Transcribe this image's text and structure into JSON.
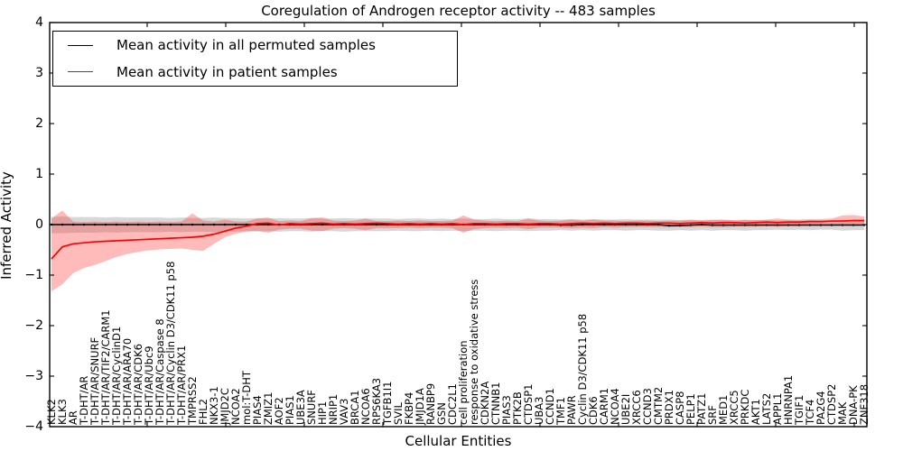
{
  "chart_data": {
    "type": "line",
    "title": "Coregulation of Androgen receptor activity -- 483 samples",
    "xlabel": "Cellular Entities",
    "ylabel": "Inferred Activity",
    "ylim": [
      -4,
      4
    ],
    "yticks": [
      "4",
      "3",
      "2",
      "1",
      "0",
      "−1",
      "−2",
      "−3",
      "−4"
    ],
    "grid": "off",
    "legend_position": "upper left",
    "colors": {
      "permuted_line": "#000000",
      "patient_line": "#ff0000",
      "permuted_band": "rgba(110,110,110,0.28)",
      "patient_band": "rgba(255,45,45,0.33)",
      "axis": "#000000"
    },
    "categories": [
      "KLK2",
      "KLK3",
      "AR",
      "T-DHT/AR",
      "T-DHT/AR/SNURF",
      "T-DHT/AR/TIF2/CARM1",
      "T-DHT/AR/CyclinD1",
      "T-DHT/AR/ARA70",
      "T-DHT/AR/CDK6",
      "T-DHT/AR/Ubc9",
      "T-DHT/AR/Caspase 8",
      "T-DHT/AR/Cyclin D3/CDK11 p58",
      "T-DHT/AR/PRX1",
      "TMPRSS2",
      "FHL2",
      "NKX3-1",
      "JMJD2C",
      "NCOA2",
      "mol:T-DHT",
      "PIAS4",
      "ZMIZ1",
      "AOF2",
      "PIAS1",
      "UBE3A",
      "SNURF",
      "HIP1",
      "NRIP1",
      "VAV3",
      "BRCA1",
      "NCOA6",
      "RPS6KA3",
      "TGFB1I1",
      "SVIL",
      "FKBP4",
      "JMJD1A",
      "RANBP9",
      "GSN",
      "CDC2L1",
      "cell proliferation",
      "response to oxidative stress",
      "CDKN2A",
      "CTNNB1",
      "PIAS3",
      "PTK2B",
      "CTDSP1",
      "UBA3",
      "CCND1",
      "TMF1",
      "PAWR",
      "Cyclin D3/CDK11 p58",
      "CDK6",
      "CARM1",
      "NCOA4",
      "UBE2I",
      "XRCC6",
      "CCND3",
      "CMTM2",
      "PRDX1",
      "CASP8",
      "PELP1",
      "PATZ1",
      "SRF",
      "MED1",
      "XRCC5",
      "PRKDC",
      "AKT1",
      "LATS2",
      "APPL1",
      "HNRNPA1",
      "TGIF1",
      "TCF4",
      "PA2G4",
      "CTDSP2",
      "MAK",
      "DNA-PK",
      "ZNF318"
    ],
    "series": [
      {
        "name": "Mean activity in all permuted samples",
        "color": "#000000",
        "band_fill": "rgba(110,110,110,0.28)",
        "markers": true,
        "values": [
          0,
          0,
          0,
          0,
          0,
          0,
          0,
          0,
          0,
          0,
          0,
          0,
          0,
          0,
          0,
          0,
          0,
          0,
          0,
          0,
          0,
          0,
          0,
          0,
          0,
          0,
          0,
          0,
          0,
          0,
          0,
          0,
          0,
          0,
          0,
          0,
          0,
          0,
          0,
          0,
          0,
          0,
          0,
          0,
          0,
          0,
          0,
          -0.01,
          -0.01,
          0,
          0,
          0,
          0,
          0,
          0,
          0,
          0,
          -0.02,
          -0.02,
          -0.01,
          0,
          -0.01,
          -0.01,
          -0.01,
          -0.01,
          -0.01,
          -0.01,
          -0.01,
          -0.01,
          -0.01,
          -0.01,
          -0.01,
          -0.01,
          -0.01,
          -0.01,
          -0.01
        ],
        "band_upper": [
          0.15,
          0.16,
          0.15,
          0.15,
          0.15,
          0.14,
          0.15,
          0.14,
          0.14,
          0.14,
          0.14,
          0.13,
          0.14,
          0.13,
          0.13,
          0.14,
          0.13,
          0.13,
          0.12,
          0.13,
          0.12,
          0.13,
          0.12,
          0.12,
          0.13,
          0.12,
          0.12,
          0.13,
          0.12,
          0.12,
          0.12,
          0.12,
          0.11,
          0.12,
          0.12,
          0.11,
          0.12,
          0.11,
          0.12,
          0.11,
          0.11,
          0.12,
          0.11,
          0.11,
          0.12,
          0.11,
          0.11,
          0.1,
          0.11,
          0.1,
          0.11,
          0.1,
          0.1,
          0.11,
          0.1,
          0.1,
          0.1,
          0.1,
          0.09,
          0.1,
          0.09,
          0.1,
          0.09,
          0.09,
          0.1,
          0.09,
          0.09,
          0.08,
          0.09,
          0.08,
          0.09,
          0.08,
          0.08,
          0.09,
          0.08,
          0.08
        ],
        "band_lower": [
          -0.17,
          -0.17,
          -0.16,
          -0.16,
          -0.16,
          -0.15,
          -0.16,
          -0.15,
          -0.15,
          -0.15,
          -0.15,
          -0.14,
          -0.15,
          -0.14,
          -0.14,
          -0.15,
          -0.14,
          -0.14,
          -0.13,
          -0.14,
          -0.13,
          -0.14,
          -0.13,
          -0.13,
          -0.14,
          -0.13,
          -0.13,
          -0.14,
          -0.13,
          -0.13,
          -0.13,
          -0.13,
          -0.12,
          -0.13,
          -0.13,
          -0.12,
          -0.13,
          -0.12,
          -0.13,
          -0.12,
          -0.12,
          -0.13,
          -0.12,
          -0.12,
          -0.13,
          -0.12,
          -0.12,
          -0.11,
          -0.12,
          -0.11,
          -0.12,
          -0.11,
          -0.11,
          -0.12,
          -0.11,
          -0.11,
          -0.12,
          -0.12,
          -0.11,
          -0.12,
          -0.11,
          -0.12,
          -0.11,
          -0.11,
          -0.12,
          -0.11,
          -0.11,
          -0.1,
          -0.11,
          -0.1,
          -0.11,
          -0.1,
          -0.1,
          -0.12,
          -0.11,
          -0.11
        ]
      },
      {
        "name": "Mean activity in patient samples",
        "color": "#ff0000",
        "band_fill": "rgba(255,45,45,0.33)",
        "markers": false,
        "values": [
          -0.68,
          -0.44,
          -0.38,
          -0.36,
          -0.34,
          -0.33,
          -0.32,
          -0.31,
          -0.3,
          -0.29,
          -0.28,
          -0.27,
          -0.26,
          -0.25,
          -0.23,
          -0.19,
          -0.13,
          -0.07,
          -0.03,
          0.02,
          0.03,
          -0.01,
          0.02,
          0.01,
          0.02,
          0.03,
          0.01,
          0.02,
          0.01,
          0.02,
          0.03,
          0.02,
          0.01,
          0.02,
          0.01,
          0.02,
          0.01,
          0.02,
          0.0,
          0.02,
          0.02,
          0.01,
          0.02,
          0.02,
          0.01,
          0.02,
          0.02,
          0.01,
          0.02,
          0.03,
          0.02,
          0.03,
          0.02,
          0.03,
          0.03,
          0.02,
          0.03,
          0.03,
          0.02,
          0.03,
          0.04,
          0.03,
          0.04,
          0.04,
          0.03,
          0.04,
          0.05,
          0.04,
          0.05,
          0.05,
          0.06,
          0.06,
          0.07,
          0.07,
          0.08,
          0.08
        ],
        "band_upper": [
          0.12,
          0.28,
          0.06,
          0.05,
          0.06,
          0.05,
          0.06,
          0.05,
          0.06,
          0.05,
          0.06,
          0.05,
          0.06,
          0.22,
          0.08,
          0.06,
          0.1,
          0.06,
          0.06,
          0.12,
          0.14,
          0.07,
          0.08,
          0.07,
          0.13,
          0.14,
          0.08,
          0.07,
          0.08,
          0.12,
          0.07,
          0.07,
          0.08,
          0.07,
          0.08,
          0.07,
          0.07,
          0.08,
          0.18,
          0.1,
          0.08,
          0.07,
          0.08,
          0.07,
          0.12,
          0.08,
          0.07,
          0.08,
          0.1,
          0.08,
          0.1,
          0.08,
          0.08,
          0.07,
          0.08,
          0.08,
          0.07,
          0.08,
          0.08,
          0.09,
          0.08,
          0.09,
          0.1,
          0.08,
          0.09,
          0.09,
          0.1,
          0.12,
          0.1,
          0.1,
          0.11,
          0.11,
          0.12,
          0.18,
          0.19,
          0.16
        ],
        "band_lower": [
          -1.32,
          -1.18,
          -0.96,
          -0.86,
          -0.8,
          -0.72,
          -0.64,
          -0.58,
          -0.54,
          -0.51,
          -0.49,
          -0.48,
          -0.47,
          -0.5,
          -0.52,
          -0.38,
          -0.25,
          -0.18,
          -0.14,
          -0.12,
          -0.16,
          -0.1,
          -0.08,
          -0.08,
          -0.12,
          -0.13,
          -0.08,
          -0.07,
          -0.08,
          -0.11,
          -0.07,
          -0.07,
          -0.07,
          -0.06,
          -0.07,
          -0.06,
          -0.06,
          -0.07,
          -0.16,
          -0.09,
          -0.07,
          -0.06,
          -0.07,
          -0.06,
          -0.09,
          -0.06,
          -0.06,
          -0.06,
          -0.07,
          -0.06,
          -0.07,
          -0.05,
          -0.06,
          -0.05,
          -0.05,
          -0.05,
          -0.05,
          -0.05,
          -0.04,
          -0.05,
          -0.04,
          -0.05,
          -0.05,
          -0.04,
          -0.04,
          -0.04,
          -0.03,
          -0.04,
          -0.03,
          -0.03,
          -0.02,
          -0.02,
          -0.01,
          -0.02,
          -0.01,
          0.0
        ]
      }
    ]
  }
}
